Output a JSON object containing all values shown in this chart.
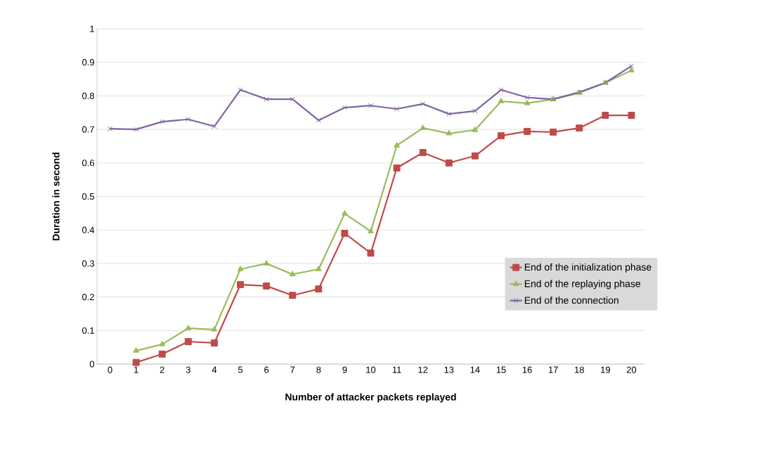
{
  "chart_data": {
    "type": "line",
    "xlabel": "Number of attacker packets replayed",
    "ylabel": "Duration in second",
    "categories": [
      "0",
      "1",
      "2",
      "3",
      "4",
      "5",
      "6",
      "7",
      "8",
      "9",
      "10",
      "11",
      "12",
      "13",
      "14",
      "15",
      "16",
      "17",
      "18",
      "19",
      "20"
    ],
    "series": [
      {
        "name": "End of the initialization phase",
        "color": "#be4b48",
        "marker": "square",
        "values": [
          null,
          0.005,
          0.03,
          0.067,
          0.063,
          0.237,
          0.233,
          0.205,
          0.224,
          0.39,
          0.331,
          0.585,
          0.631,
          0.6,
          0.621,
          0.681,
          0.694,
          0.692,
          0.704,
          0.742,
          0.742
        ]
      },
      {
        "name": "End of the replaying phase",
        "color": "#9bbb59",
        "marker": "triangle",
        "values": [
          null,
          0.04,
          0.059,
          0.107,
          0.103,
          0.283,
          0.3,
          0.268,
          0.283,
          0.449,
          0.396,
          0.652,
          0.704,
          0.688,
          0.698,
          0.784,
          0.778,
          0.79,
          0.809,
          0.839,
          0.876
        ]
      },
      {
        "name": "End of the connection",
        "color": "#8064a2",
        "marker": "cross",
        "values": [
          0.702,
          0.7,
          0.723,
          0.73,
          0.709,
          0.818,
          0.79,
          0.79,
          0.727,
          0.765,
          0.771,
          0.761,
          0.776,
          0.746,
          0.755,
          0.818,
          0.795,
          0.79,
          0.811,
          0.839,
          0.889
        ]
      }
    ],
    "ylim": [
      0,
      1
    ],
    "yticks": [
      0,
      0.1,
      0.2,
      0.3,
      0.4,
      0.5,
      0.6,
      0.7,
      0.8,
      0.9,
      1
    ],
    "grid": "y",
    "legend": "right",
    "line_style": "solid"
  }
}
